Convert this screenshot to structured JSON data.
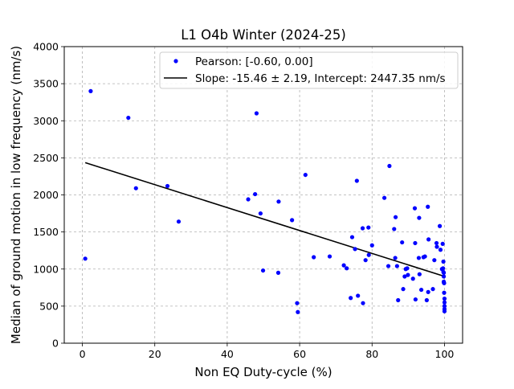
{
  "chart_data": {
    "type": "scatter",
    "title": "L1 O4b Winter (2024-25)",
    "xlabel": "Non EQ Duty-cycle (%)",
    "ylabel": "Median of ground motion in low frequency (nm/s)",
    "xlim": [
      -5,
      105
    ],
    "ylim": [
      0,
      4000
    ],
    "xticks": [
      0,
      20,
      40,
      60,
      80,
      100
    ],
    "yticks": [
      0,
      500,
      1000,
      1500,
      2000,
      2500,
      3000,
      3500,
      4000
    ],
    "grid": true,
    "grid_style": "dashed",
    "legend_position": "top-right",
    "colors": {
      "points": "#0000ff",
      "fit_line": "#000000",
      "grid": "#b0b0b0"
    },
    "series": [
      {
        "name": "Pearson: [-0.60, 0.00]",
        "kind": "points",
        "x": [
          0.8,
          2.3,
          12.7,
          14.8,
          23.5,
          26.6,
          45.8,
          47.7,
          48.1,
          49.2,
          49.9,
          54.1,
          54.2,
          57.9,
          59.3,
          59.5,
          61.6,
          63.9,
          68.3,
          72.2,
          73.0,
          74.1,
          74.5,
          75.3,
          75.8,
          76.1,
          77.4,
          77.5,
          78.2,
          79.0,
          79.1,
          80.0,
          83.4,
          84.5,
          84.8,
          86.1,
          86.4,
          86.5,
          86.9,
          87.2,
          88.3,
          88.6,
          89.0,
          89.3,
          89.7,
          89.9,
          91.3,
          91.8,
          91.9,
          92.0,
          92.9,
          93.0,
          93.1,
          93.6,
          94.2,
          94.6,
          95.1,
          95.4,
          95.5,
          95.6,
          96.8,
          97.2,
          97.8,
          97.9,
          98.7,
          98.9,
          99.3,
          99.5,
          99.6,
          99.7,
          99.7,
          99.8,
          99.8,
          99.8,
          99.8,
          99.9,
          99.9,
          100.0,
          100.0,
          100.0,
          100.0,
          100.0
        ],
        "y": [
          1140,
          3400,
          3040,
          2090,
          2120,
          1640,
          1940,
          2010,
          3100,
          1750,
          980,
          950,
          1910,
          1660,
          540,
          420,
          2270,
          1160,
          1170,
          1050,
          1010,
          610,
          1430,
          1270,
          2190,
          640,
          1550,
          540,
          1120,
          1560,
          1190,
          1320,
          1960,
          1040,
          2390,
          1540,
          1150,
          1700,
          1040,
          580,
          1360,
          730,
          900,
          1000,
          1010,
          920,
          870,
          1820,
          1350,
          590,
          1150,
          1690,
          930,
          720,
          1160,
          1170,
          580,
          1840,
          690,
          1400,
          730,
          1120,
          1350,
          1300,
          1580,
          1260,
          1000,
          1340,
          1010,
          1100,
          960,
          900,
          820,
          830,
          950,
          810,
          680,
          600,
          550,
          500,
          460,
          430
        ]
      },
      {
        "name": "Slope: -15.46 ± 2.19, Intercept: 2447.35 nm/s",
        "kind": "line",
        "x": [
          0.8,
          100
        ],
        "y": [
          2435,
          901
        ]
      }
    ]
  }
}
